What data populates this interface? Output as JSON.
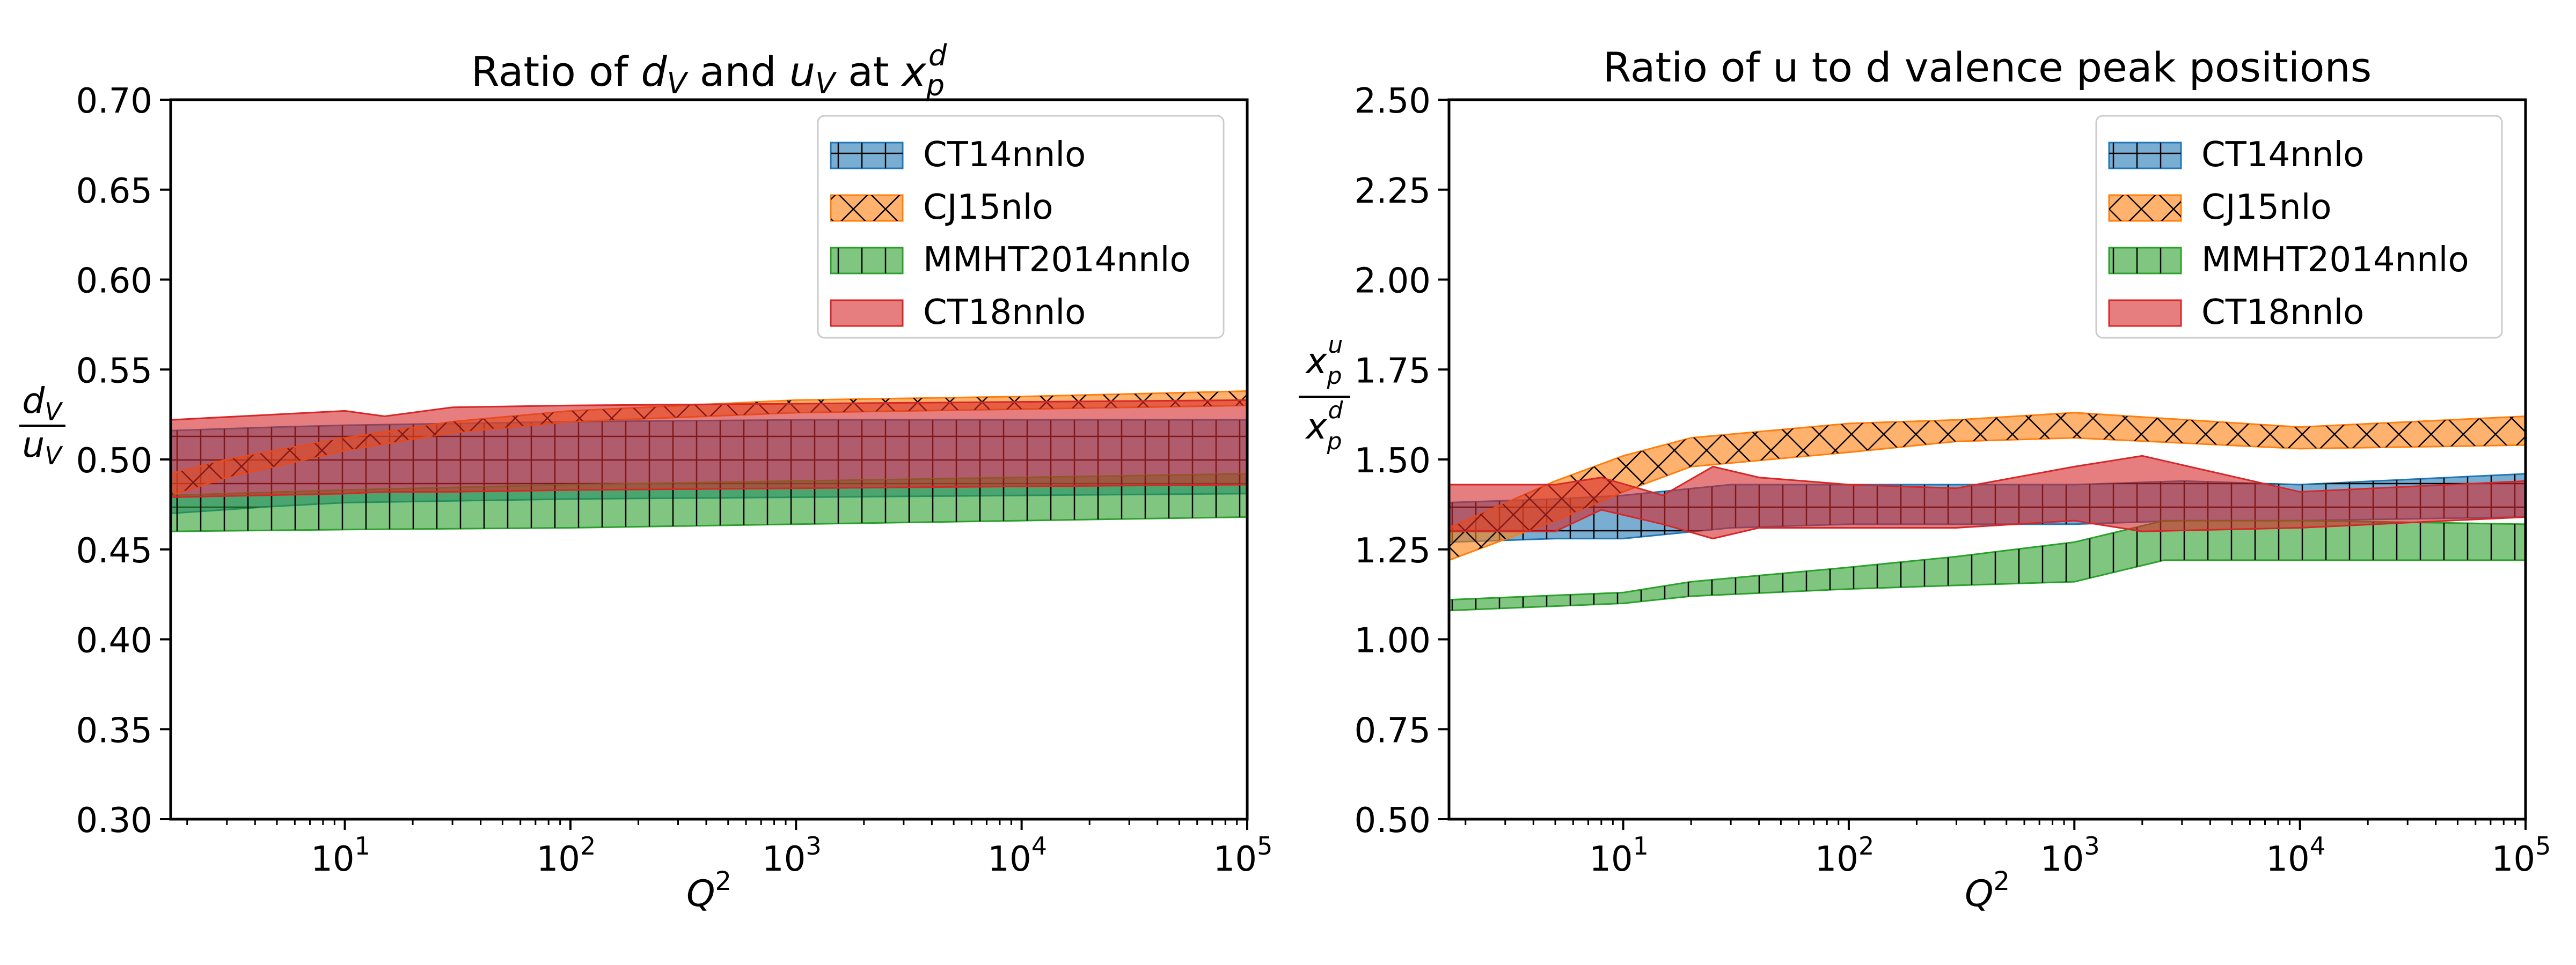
{
  "chart_data": [
    {
      "type": "area",
      "title_parts": {
        "pre": "Ratio of ",
        "d": "d",
        "dsub": "V",
        "mid": " and ",
        "u": "u",
        "usub": "V",
        "at": " at ",
        "x": "x",
        "xsub": "p",
        "xsup": "d"
      },
      "xlabel": {
        "base": "Q",
        "sup": "2"
      },
      "ylabel": {
        "num": "d",
        "numsub": "V",
        "den": "u",
        "densub": "V"
      },
      "xscale": "log",
      "xlim": [
        1.69,
        100000
      ],
      "ylim": [
        0.3,
        0.7
      ],
      "yticks": [
        "0.30",
        "0.35",
        "0.40",
        "0.45",
        "0.50",
        "0.55",
        "0.60",
        "0.65",
        "0.70"
      ],
      "xticks": [
        {
          "base": "10",
          "exp": "1",
          "val": 10
        },
        {
          "base": "10",
          "exp": "2",
          "val": 100
        },
        {
          "base": "10",
          "exp": "3",
          "val": 1000
        },
        {
          "base": "10",
          "exp": "4",
          "val": 10000
        },
        {
          "base": "10",
          "exp": "5",
          "val": 100000
        }
      ],
      "legend_position": "top-right",
      "series": [
        {
          "name": "CT14nnlo",
          "color": "#1f77b4",
          "hatch": "grid",
          "x": [
            1.69,
            5,
            10,
            100,
            1000,
            10000,
            100000
          ],
          "low": [
            0.47,
            0.474,
            0.476,
            0.478,
            0.479,
            0.48,
            0.481
          ],
          "high": [
            0.516,
            0.518,
            0.519,
            0.521,
            0.522,
            0.522,
            0.522
          ]
        },
        {
          "name": "CJ15nlo",
          "color": "#ff7f0e",
          "hatch": "cross",
          "x": [
            1.69,
            3,
            10,
            30,
            100,
            1000,
            10000,
            100000
          ],
          "low": [
            0.48,
            0.49,
            0.505,
            0.515,
            0.521,
            0.526,
            0.528,
            0.53
          ],
          "high": [
            0.492,
            0.5,
            0.512,
            0.521,
            0.527,
            0.533,
            0.535,
            0.538
          ]
        },
        {
          "name": "MMHT2014nnlo",
          "color": "#2ca02c",
          "hatch": "vertical",
          "x": [
            1.69,
            10,
            100,
            1000,
            10000,
            100000
          ],
          "low": [
            0.46,
            0.461,
            0.462,
            0.464,
            0.466,
            0.468
          ],
          "high": [
            0.48,
            0.483,
            0.486,
            0.488,
            0.49,
            0.492
          ]
        },
        {
          "name": "CT18nnlo",
          "color": "#d62728",
          "hatch": "none",
          "x": [
            1.69,
            10,
            15,
            30,
            100,
            1000,
            10000,
            100000
          ],
          "low": [
            0.479,
            0.481,
            0.482,
            0.482,
            0.483,
            0.484,
            0.485,
            0.486
          ],
          "high": [
            0.522,
            0.527,
            0.524,
            0.529,
            0.53,
            0.531,
            0.532,
            0.533
          ]
        }
      ]
    },
    {
      "type": "area",
      "title": "Ratio of u to d valence peak positions",
      "xlabel": {
        "base": "Q",
        "sup": "2"
      },
      "ylabel": {
        "num": "x",
        "numsub": "p",
        "numsup": "u",
        "den": "x",
        "densub": "p",
        "densup": "d"
      },
      "xscale": "log",
      "xlim": [
        1.69,
        100000
      ],
      "ylim": [
        0.5,
        2.5
      ],
      "yticks": [
        "0.50",
        "0.75",
        "1.00",
        "1.25",
        "1.50",
        "1.75",
        "2.00",
        "2.25",
        "2.50"
      ],
      "xticks": [
        {
          "base": "10",
          "exp": "1",
          "val": 10
        },
        {
          "base": "10",
          "exp": "2",
          "val": 100
        },
        {
          "base": "10",
          "exp": "3",
          "val": 1000
        },
        {
          "base": "10",
          "exp": "4",
          "val": 10000
        },
        {
          "base": "10",
          "exp": "5",
          "val": 100000
        }
      ],
      "legend_position": "top-right",
      "series": [
        {
          "name": "CT14nnlo",
          "color": "#1f77b4",
          "hatch": "grid",
          "x": [
            1.69,
            5,
            10,
            30,
            100,
            300,
            1000,
            3000,
            10000,
            100000
          ],
          "low": [
            1.27,
            1.28,
            1.28,
            1.31,
            1.32,
            1.32,
            1.32,
            1.33,
            1.33,
            1.34
          ],
          "high": [
            1.38,
            1.39,
            1.4,
            1.43,
            1.43,
            1.43,
            1.43,
            1.44,
            1.43,
            1.46
          ]
        },
        {
          "name": "CJ15nlo",
          "color": "#ff7f0e",
          "hatch": "cross",
          "x": [
            1.69,
            5,
            10,
            20,
            100,
            300,
            1000,
            10000,
            100000
          ],
          "low": [
            1.22,
            1.33,
            1.41,
            1.48,
            1.52,
            1.55,
            1.56,
            1.53,
            1.54
          ],
          "high": [
            1.31,
            1.44,
            1.51,
            1.56,
            1.6,
            1.61,
            1.63,
            1.59,
            1.62
          ]
        },
        {
          "name": "MMHT2014nnlo",
          "color": "#2ca02c",
          "hatch": "vertical",
          "x": [
            1.69,
            10,
            20,
            100,
            300,
            1000,
            2500,
            10000,
            100000
          ],
          "low": [
            1.08,
            1.1,
            1.12,
            1.14,
            1.15,
            1.16,
            1.22,
            1.22,
            1.22
          ],
          "high": [
            1.11,
            1.13,
            1.16,
            1.2,
            1.23,
            1.27,
            1.33,
            1.33,
            1.32
          ]
        },
        {
          "name": "CT18nnlo",
          "color": "#d62728",
          "hatch": "none",
          "x": [
            1.69,
            5,
            8,
            15,
            25,
            40,
            100,
            300,
            1000,
            2000,
            10000,
            100000
          ],
          "low": [
            1.3,
            1.3,
            1.36,
            1.32,
            1.28,
            1.31,
            1.31,
            1.31,
            1.33,
            1.3,
            1.31,
            1.34
          ],
          "high": [
            1.43,
            1.43,
            1.45,
            1.4,
            1.48,
            1.45,
            1.43,
            1.42,
            1.48,
            1.51,
            1.41,
            1.44
          ]
        }
      ]
    }
  ]
}
